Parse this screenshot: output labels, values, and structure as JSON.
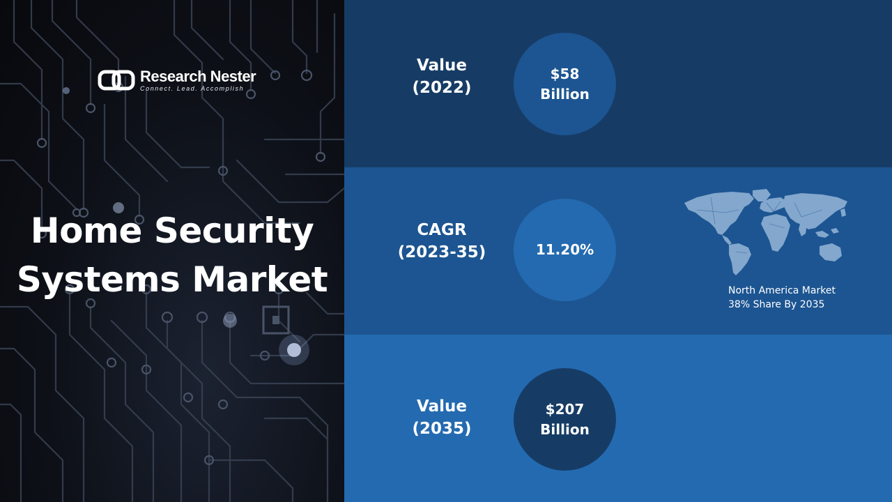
{
  "brand": {
    "name": "Research Nester",
    "tagline": "Connect. Lead. Accomplish",
    "logo_icon": "chain-link-logo-icon"
  },
  "title": {
    "line1": "Home Security",
    "line2": "Systems Market"
  },
  "stats": [
    {
      "label_line1": "Value",
      "label_line2": "(2022)",
      "value_line1": "$58",
      "value_line2": "Billion"
    },
    {
      "label_line1": "CAGR",
      "label_line2": "(2023-35)",
      "value_line1": "11.20%",
      "value_line2": ""
    },
    {
      "label_line1": "Value",
      "label_line2": "(2035)",
      "value_line1": "$207",
      "value_line2": "Billion"
    }
  ],
  "map": {
    "icon": "world-map-icon",
    "caption_line1": "North  America Market",
    "caption_line2": "38% Share  By 2035"
  },
  "colors": {
    "band_dark": "#163c66",
    "band_mid": "#1c5591",
    "band_light": "#246ab0",
    "map_fill": "#8fb0d4"
  }
}
